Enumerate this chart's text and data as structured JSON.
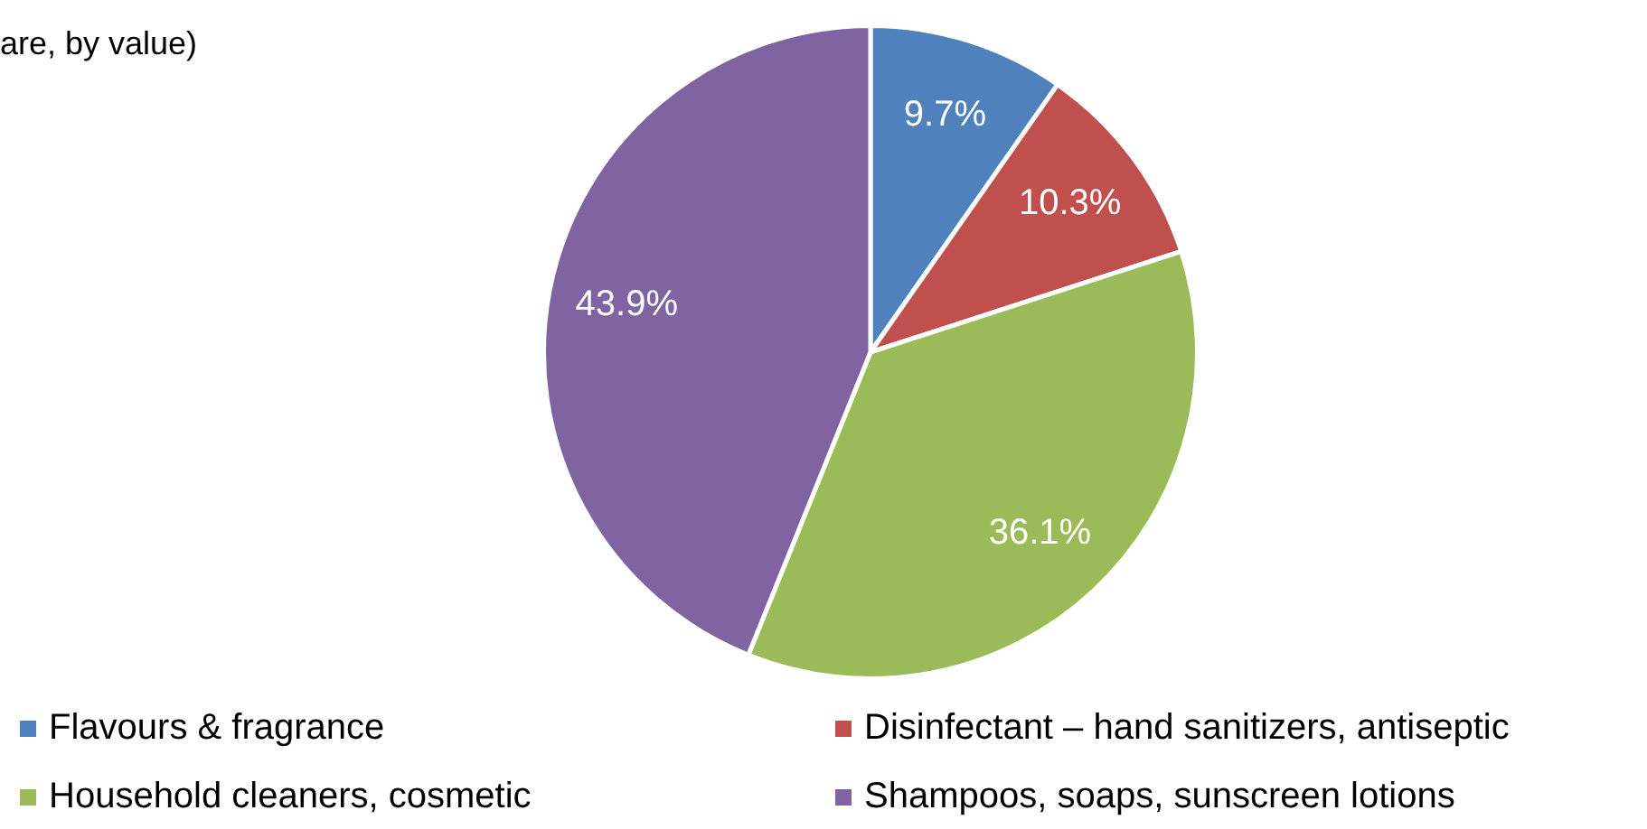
{
  "chart_data": {
    "type": "pie",
    "title": "are, by value)",
    "categories": [
      "Flavours & fragrance",
      "Disinfectant – hand sanitizers, antiseptic",
      "Household cleaners, cosmetic",
      "Shampoos, soaps, sunscreen lotions"
    ],
    "values": [
      9.7,
      10.3,
      36.1,
      43.9
    ],
    "colors": [
      "#4f81bd",
      "#c0504d",
      "#9bbb59",
      "#8064a2"
    ],
    "value_labels": [
      "9.7%",
      "10.3%",
      "36.1%",
      "43.9%"
    ],
    "legend": "bottom"
  }
}
